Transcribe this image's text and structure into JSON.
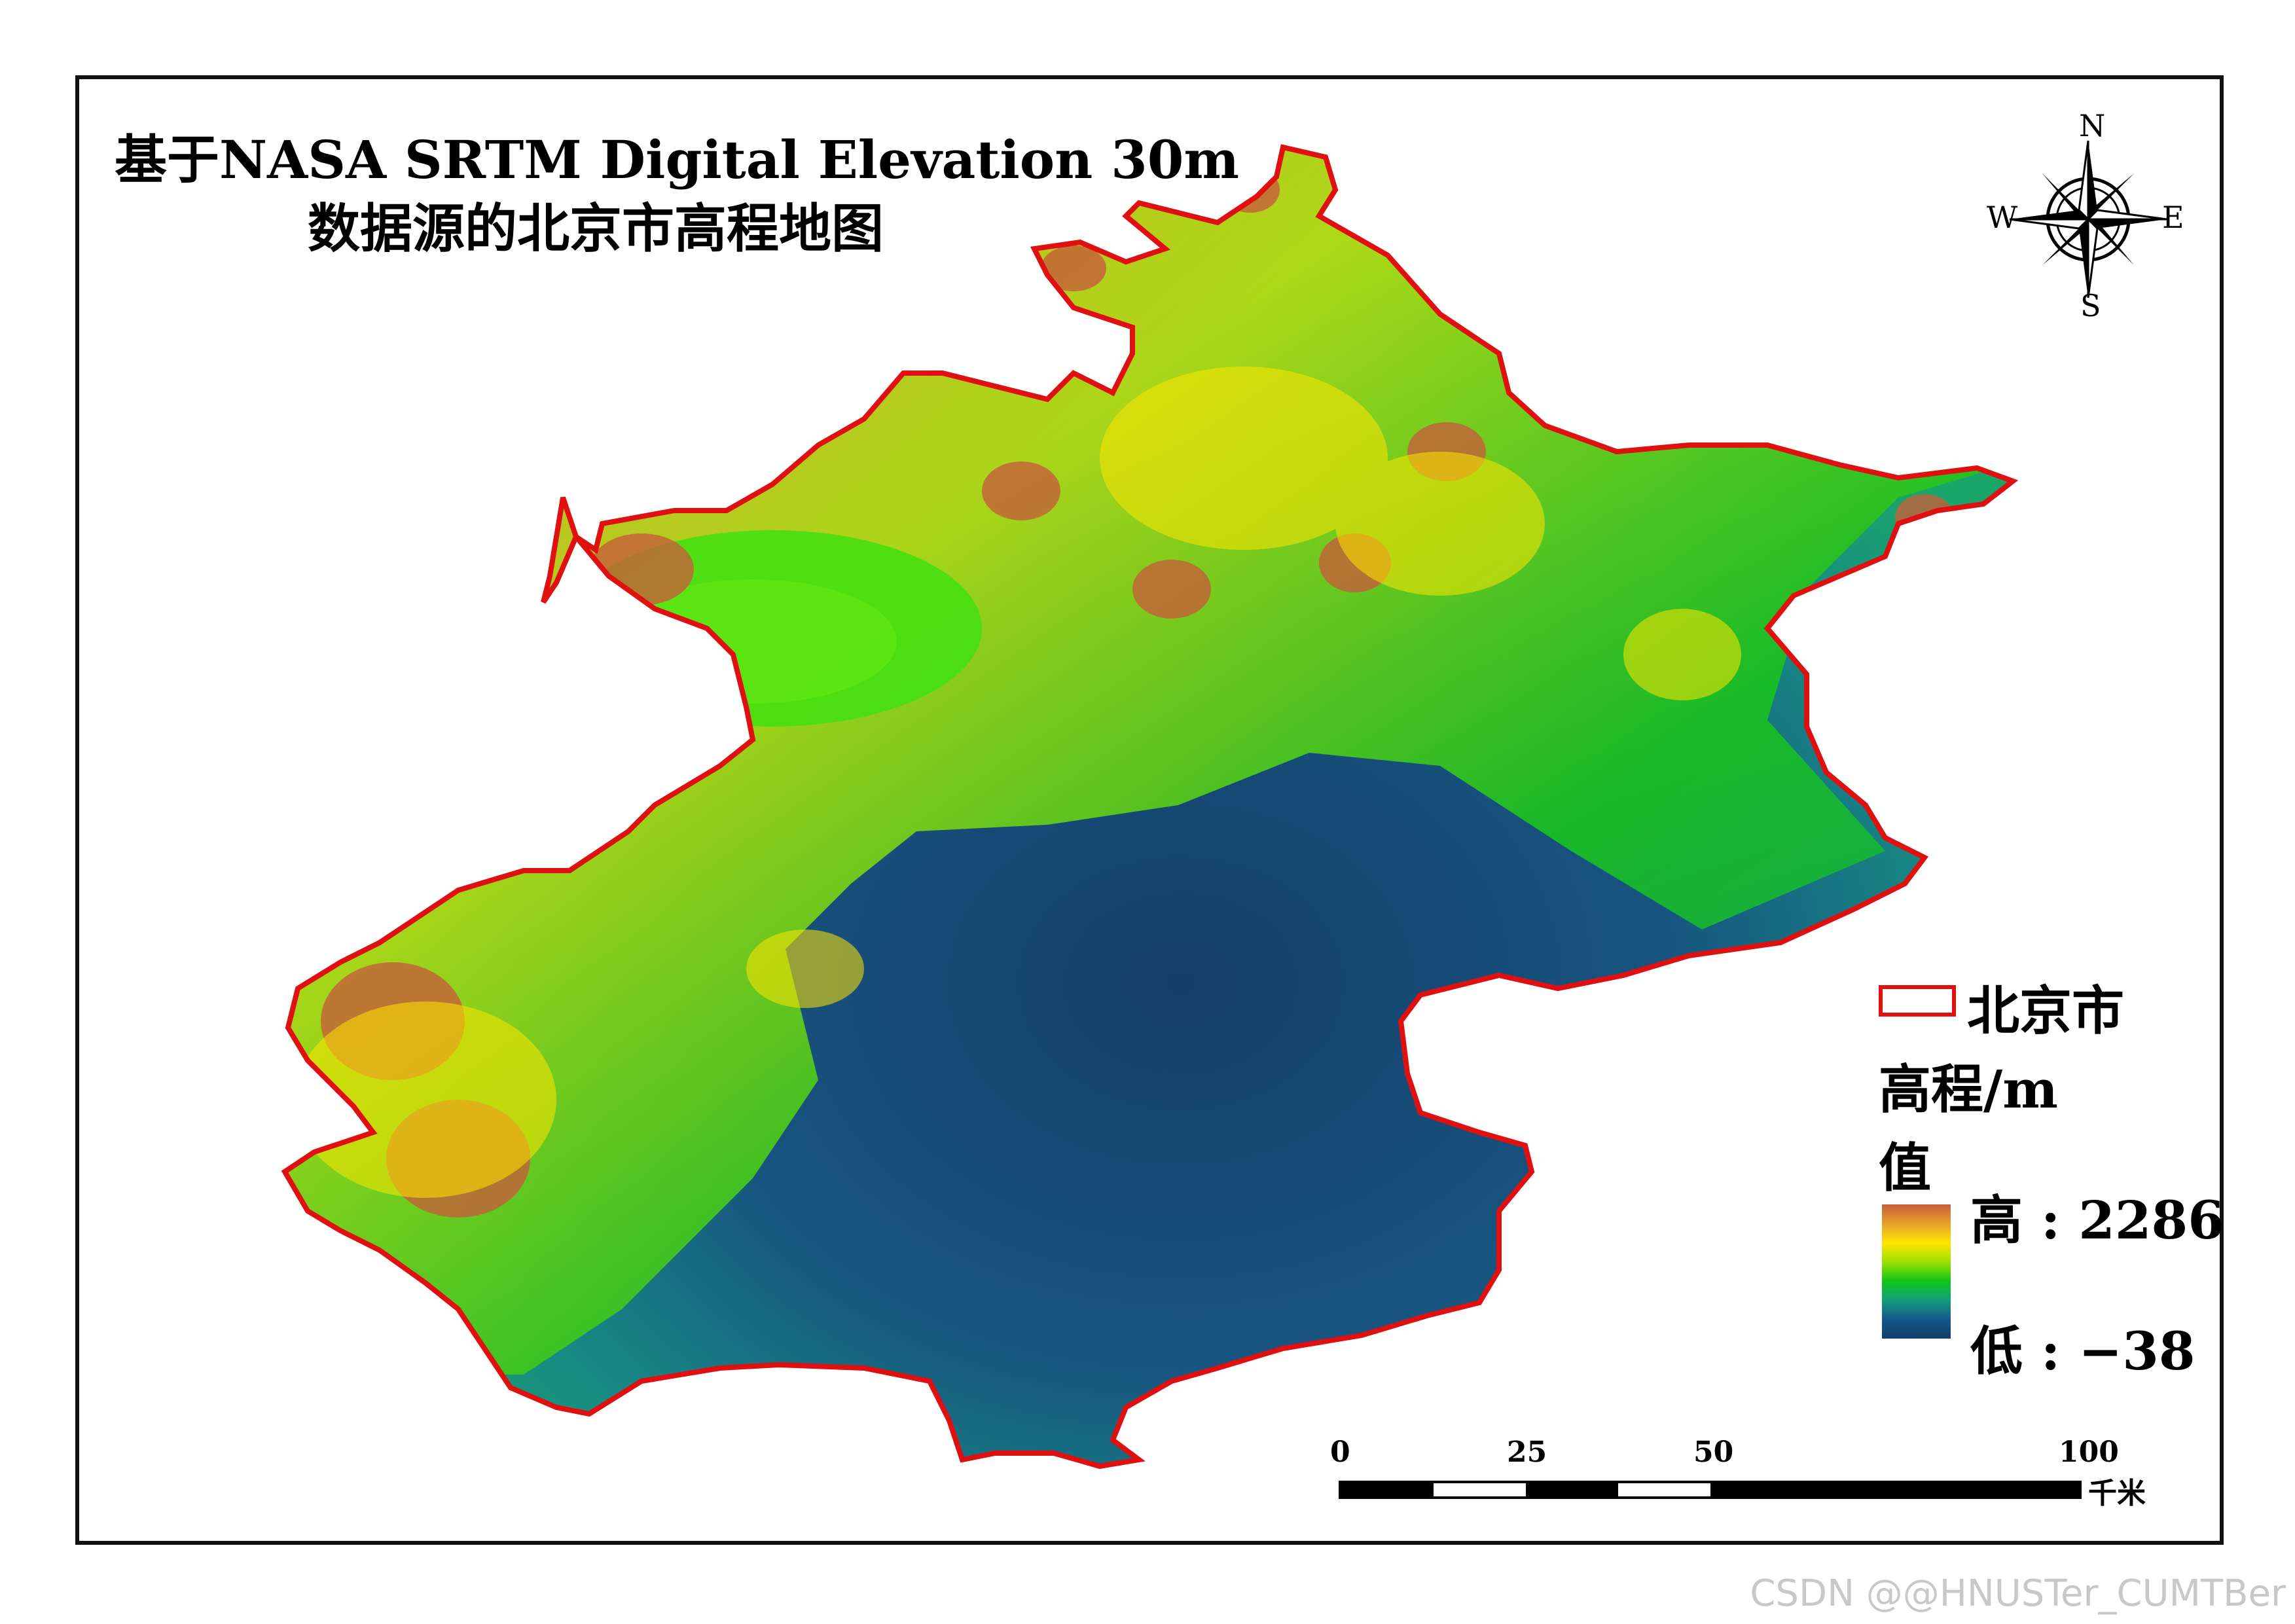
{
  "title_line1": "基于NASA SRTM Digital Elevation 30m",
  "title_line2": "数据源的北京市高程地图",
  "compass": {
    "north": "N",
    "south": "S",
    "east": "E",
    "west": "W"
  },
  "legend": {
    "boundary_label": "北京市",
    "boundary_color": "#e01010",
    "elevation_title": "高程/m",
    "value_label": "值",
    "high_label": "高 : 2286",
    "low_label": "低 : −38",
    "ramp_colors": [
      "#c65f3a",
      "#e8a02c",
      "#ffe600",
      "#9de000",
      "#12c41a",
      "#149d7a",
      "#13578a",
      "#153e6b"
    ]
  },
  "scale": {
    "ticks": [
      "0",
      "25",
      "50",
      "100"
    ],
    "unit": "千米"
  },
  "watermark": "CSDN @@HNUSTer_CUMTBer"
}
